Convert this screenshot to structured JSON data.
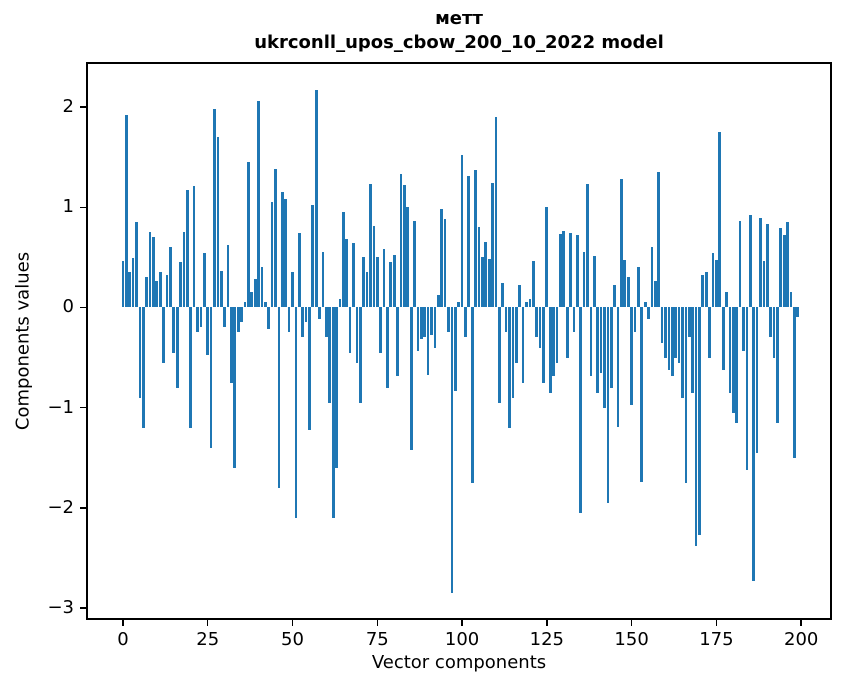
{
  "figure": {
    "title_line1": "метт",
    "title_line2": "ukrconll_upos_cbow_200_10_2022 model",
    "xlabel": "Vector components",
    "ylabel": "Components values"
  },
  "chart_data": {
    "type": "bar",
    "title": "метт",
    "subtitle": "ukrconll_upos_cbow_200_10_2022 model",
    "xlabel": "Vector components",
    "ylabel": "Components values",
    "bar_color": "#1f77b4",
    "grid": false,
    "legend": null,
    "n_bars": 200,
    "x_start": 0,
    "x_ticks": [
      0,
      25,
      50,
      75,
      100,
      125,
      150,
      175,
      200
    ],
    "x_tick_labels": [
      "0",
      "25",
      "50",
      "75",
      "100",
      "125",
      "150",
      "175",
      "200"
    ],
    "y_ticks": [
      -3,
      -2,
      -1,
      0,
      1,
      2
    ],
    "y_tick_labels": [
      "−3",
      "−2",
      "−1",
      "0",
      "1",
      "2"
    ],
    "xlim": [
      -10.3,
      208.5
    ],
    "ylim": [
      -3.1,
      2.43
    ],
    "values": [
      0.46,
      1.92,
      0.35,
      0.49,
      0.85,
      -0.9,
      -1.2,
      0.3,
      0.75,
      0.7,
      0.26,
      0.35,
      -0.55,
      0.32,
      0.6,
      -0.45,
      -0.8,
      0.45,
      0.75,
      1.17,
      -1.2,
      1.21,
      -0.25,
      -0.2,
      0.54,
      -0.47,
      -1.4,
      1.98,
      1.7,
      0.36,
      -0.2,
      0.62,
      -0.75,
      -1.6,
      -0.25,
      -0.15,
      0.05,
      1.45,
      0.15,
      0.28,
      2.06,
      0.4,
      0.05,
      -0.22,
      1.05,
      1.38,
      -1.8,
      1.15,
      1.08,
      -0.25,
      0.35,
      -2.1,
      0.74,
      -0.3,
      -0.15,
      -1.22,
      1.02,
      2.17,
      -0.12,
      0.55,
      -0.3,
      -0.95,
      -2.1,
      -1.6,
      0.08,
      0.95,
      0.68,
      -0.45,
      0.64,
      -0.55,
      -0.95,
      0.5,
      0.35,
      1.23,
      0.81,
      0.5,
      -0.45,
      0.58,
      -0.8,
      0.45,
      0.52,
      -0.68,
      1.33,
      1.22,
      1.0,
      -1.42,
      0.86,
      -0.43,
      -0.32,
      -0.3,
      -0.67,
      -0.28,
      -0.4,
      0.12,
      0.98,
      0.88,
      -0.25,
      -2.85,
      -0.83,
      0.05,
      1.52,
      -0.3,
      1.31,
      -1.75,
      1.37,
      0.8,
      0.5,
      0.65,
      0.48,
      1.24,
      1.9,
      -0.95,
      0.24,
      -0.25,
      -1.2,
      -0.9,
      -0.55,
      0.22,
      -0.75,
      0.05,
      0.08,
      0.46,
      -0.3,
      -0.4,
      -0.75,
      1.0,
      -0.85,
      -0.68,
      -0.55,
      0.73,
      0.76,
      -0.5,
      0.74,
      -0.25,
      0.72,
      -2.05,
      0.55,
      1.23,
      -0.68,
      0.51,
      -0.85,
      -0.65,
      -1.0,
      -1.95,
      -0.8,
      0.22,
      -1.19,
      1.28,
      0.47,
      0.3,
      -0.97,
      -0.25,
      0.4,
      -1.74,
      0.05,
      -0.12,
      0.6,
      0.26,
      1.35,
      -0.35,
      -0.5,
      -0.62,
      -0.68,
      -0.5,
      -0.55,
      -0.9,
      -1.75,
      -0.3,
      -0.85,
      -2.38,
      -2.27,
      0.32,
      0.35,
      -0.5,
      0.54,
      0.47,
      1.75,
      -0.62,
      0.15,
      -0.85,
      -1.05,
      -1.15,
      0.86,
      -0.43,
      -1.62,
      0.92,
      -2.73,
      -1.45,
      0.89,
      0.46,
      0.83,
      -0.3,
      -0.5,
      -1.15,
      0.79,
      0.72,
      0.85,
      0.15,
      -1.5,
      -0.1
    ]
  }
}
